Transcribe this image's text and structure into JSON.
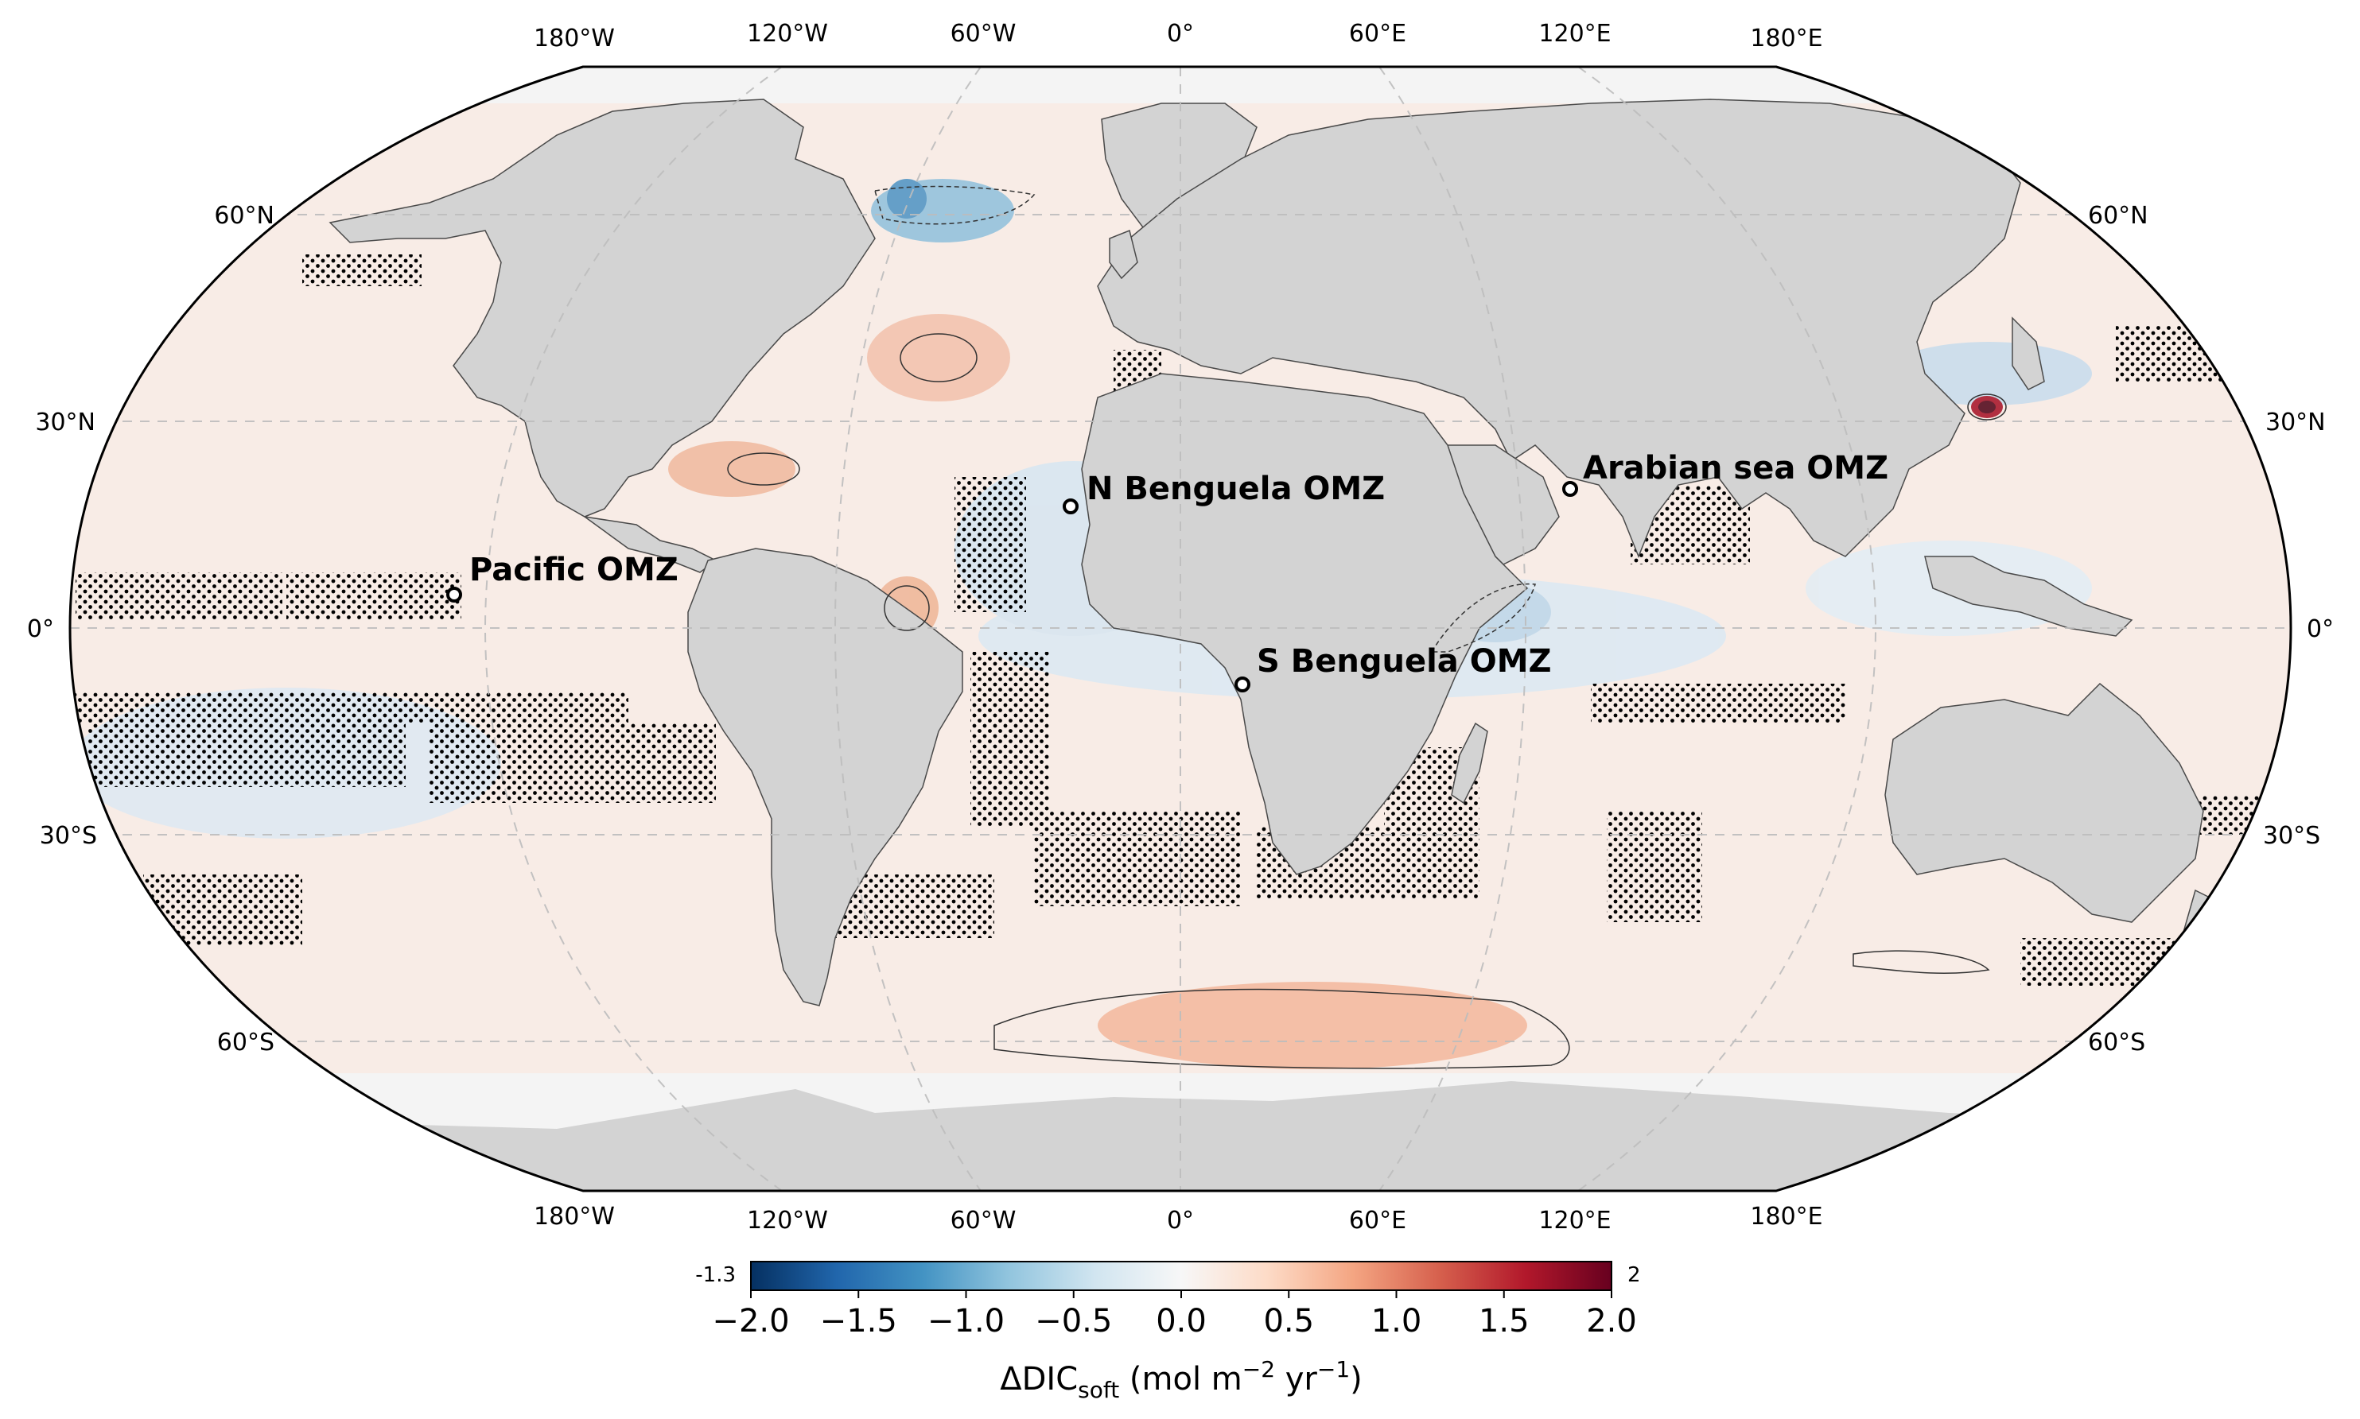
{
  "map": {
    "projection": "Robinson",
    "lon_labels": [
      "180°W",
      "120°W",
      "60°W",
      "0°",
      "60°E",
      "120°E",
      "180°E"
    ],
    "lat_labels_left": [
      "60°N",
      "30°N",
      "0°",
      "30°S",
      "60°S"
    ],
    "lat_labels_right": [
      "60°N",
      "30°N",
      "0°",
      "30°S",
      "60°S"
    ],
    "gridlines": true,
    "land_color": "#d3d3d3",
    "ocean_base_color": "#f7ebe6",
    "positive_color": "#f4a582",
    "negative_color": "#92c5de",
    "stippling": "dots indicate regions of low significance",
    "sites": [
      {
        "name": "N Benguela OMZ",
        "icon": "circle-marker-icon"
      },
      {
        "name": "S Benguela OMZ",
        "icon": "circle-marker-icon"
      },
      {
        "name": "Arabian sea OMZ",
        "icon": "circle-marker-icon"
      },
      {
        "name": "Pacific OMZ",
        "icon": "circle-marker-icon"
      }
    ]
  },
  "colorbar": {
    "colormap": "RdBu_r",
    "min_value": -1.3,
    "max_value": 2,
    "min_label": "-1.3",
    "max_label": "2",
    "ticks": [
      "−2.0",
      "−1.5",
      "−1.0",
      "−0.5",
      "0.0",
      "0.5",
      "1.0",
      "1.5",
      "2.0"
    ],
    "label_main": "ΔDIC",
    "label_sub": "soft",
    "label_units": " (mol m",
    "label_exp1": "−2",
    "label_units2": " yr",
    "label_exp2": "−1",
    "label_close": ")",
    "colors": [
      "#053061",
      "#2166ac",
      "#4393c3",
      "#92c5de",
      "#d1e5f0",
      "#f7f7f7",
      "#fddbc7",
      "#f4a582",
      "#d6604d",
      "#b2182b",
      "#67001f"
    ]
  }
}
